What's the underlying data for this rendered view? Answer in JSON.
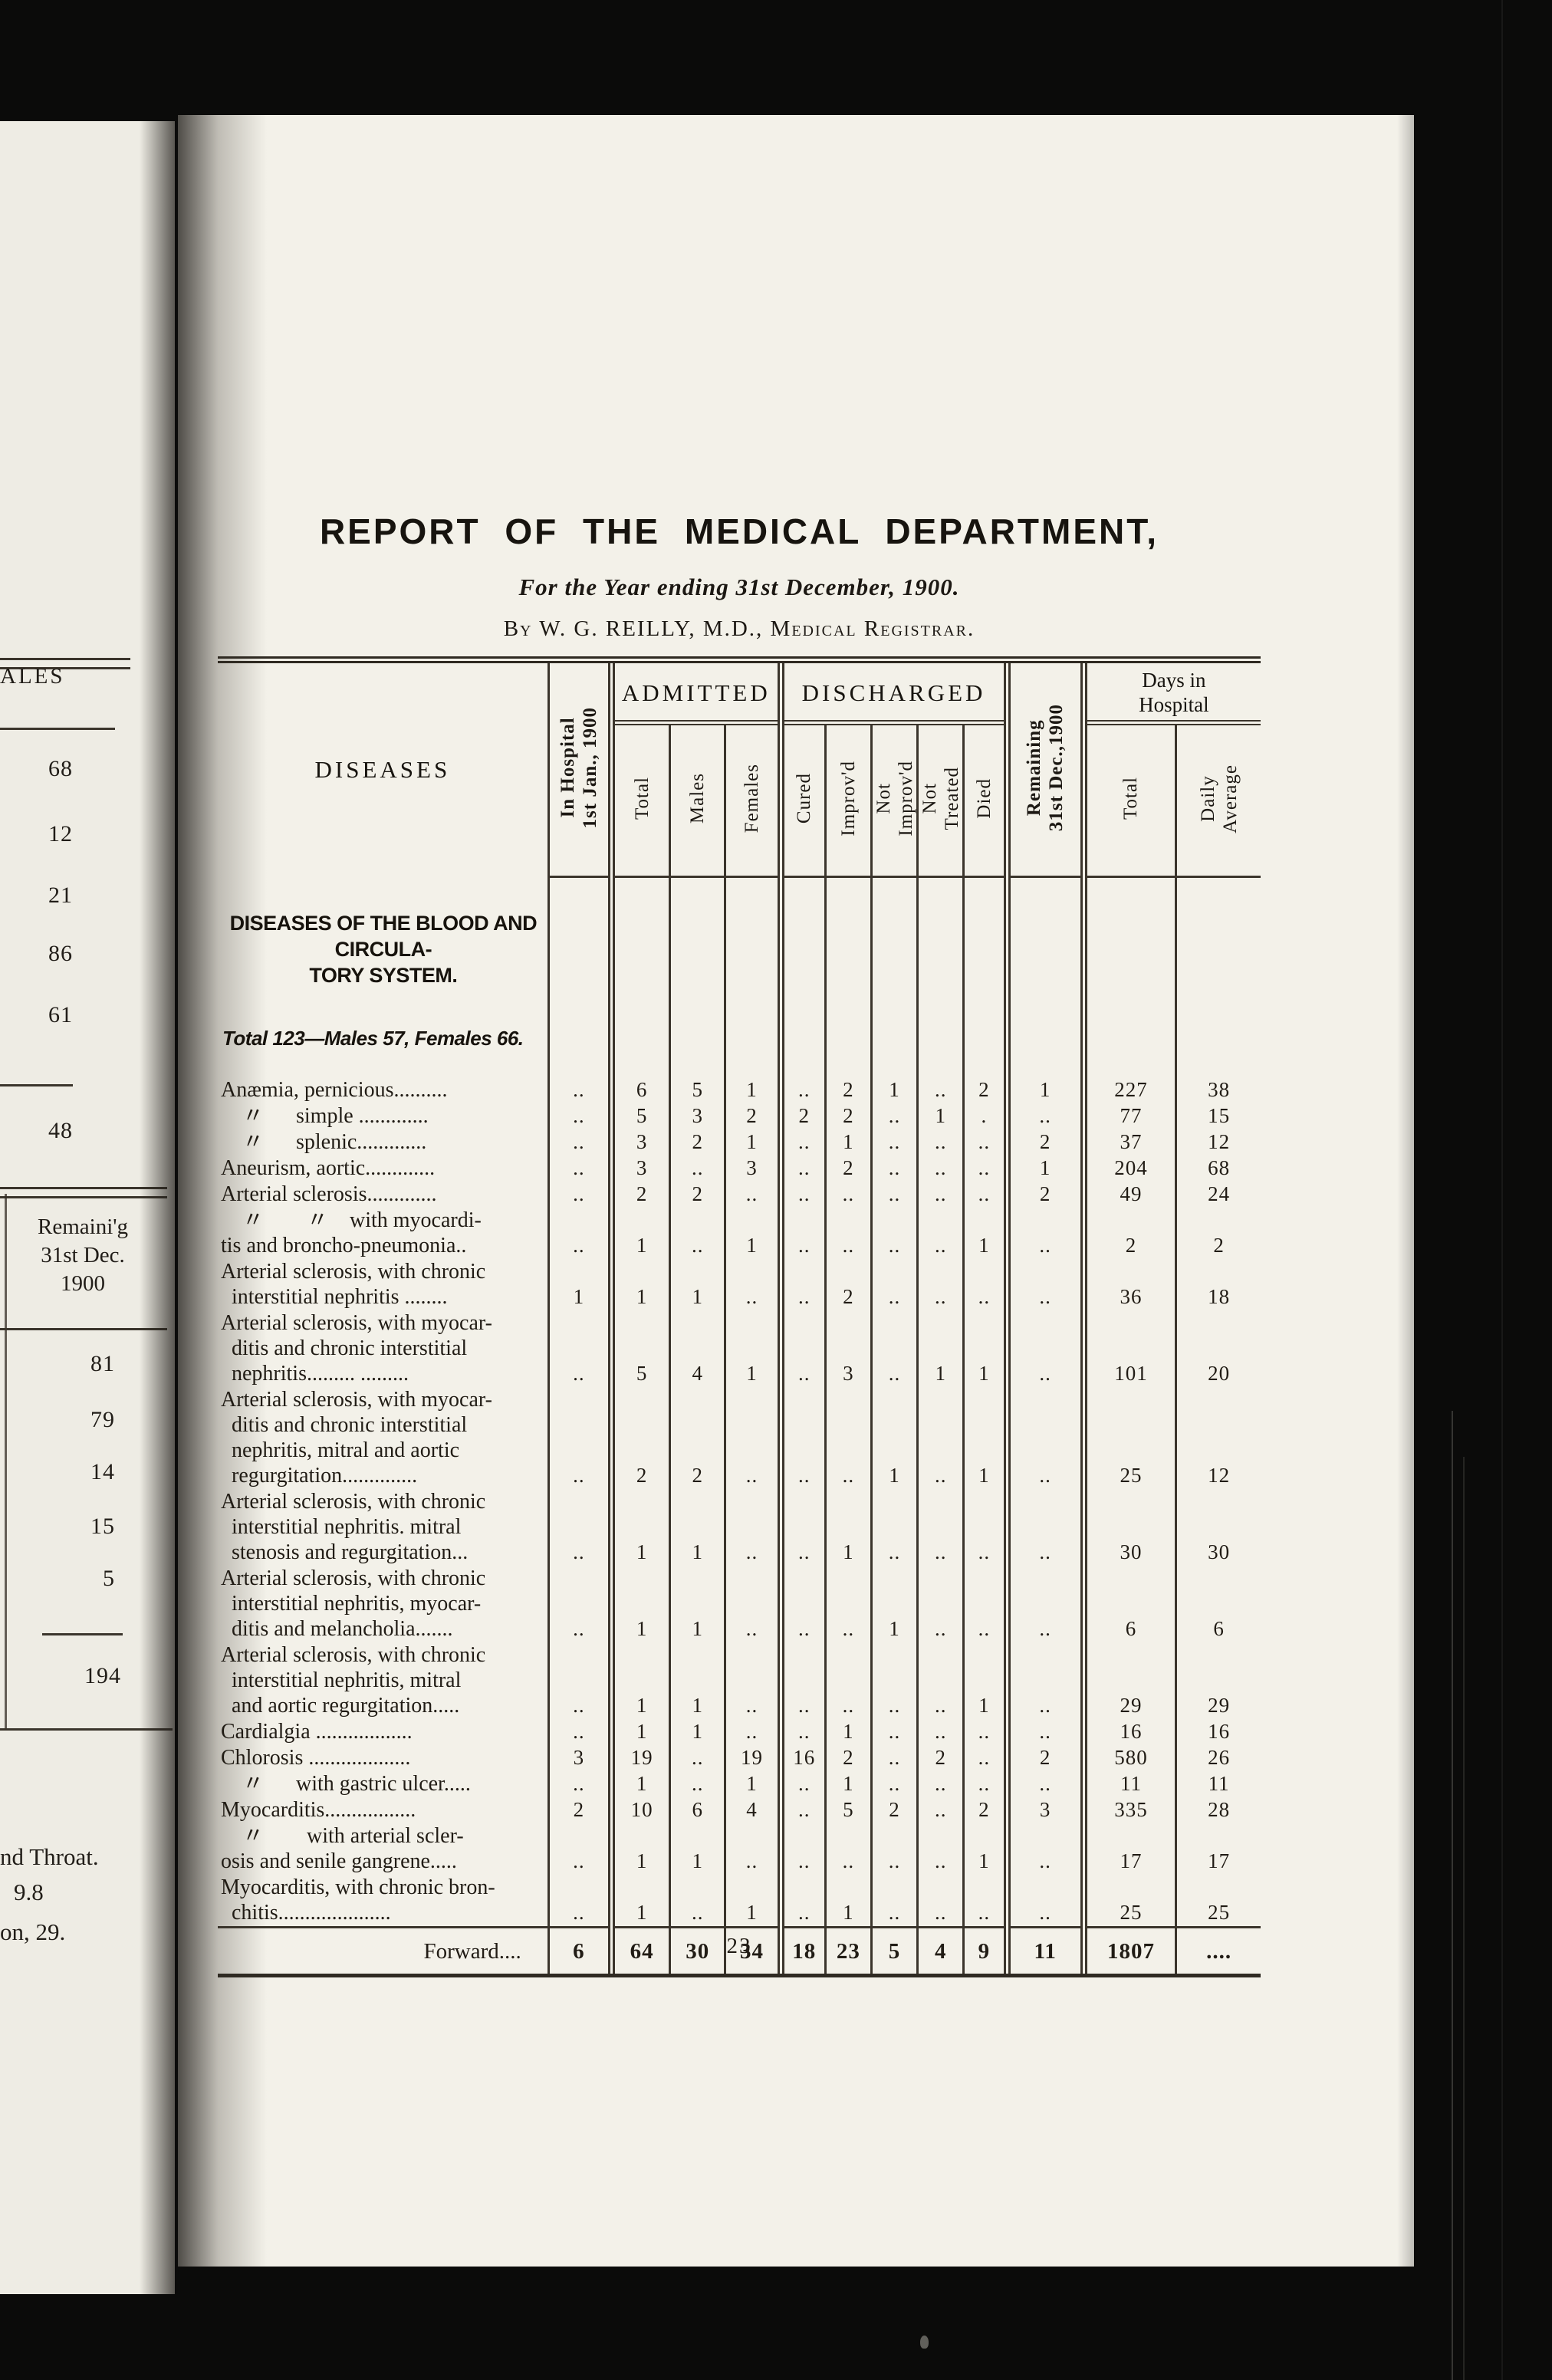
{
  "title": {
    "heading": "REPORT OF THE MEDICAL DEPARTMENT,",
    "subtitle": "For the Year ending 31st December, 1900.",
    "byline": "By W. G. REILLY, M.D., Medical Registrar."
  },
  "page": {
    "number": "23"
  },
  "table": {
    "header": {
      "diseases": "DISEASES",
      "in_hospital": "In Hospital\n1st Jan., 1900",
      "admitted": "ADMITTED",
      "total": "Total",
      "males": "Males",
      "females": "Females",
      "discharged": "DISCHARGED",
      "cured": "Cured",
      "improvd": "Improv'd",
      "not_improvd": "Not\nImprov'd",
      "not_treated": "Not\nTreated",
      "died": "Died",
      "remaining": "Remaining\n31st Dec.,1900",
      "days": "Days in\nHospital",
      "days_total": "Total",
      "daily_average": "Daily\nAverage"
    },
    "section": {
      "heading": "DISEASES OF THE BLOOD AND CIRCULA-\nTORY SYSTEM.",
      "summary": "Total 123—Males 57, Females 66."
    },
    "rows": [
      {
        "name": "Anæmia, pernicious..........",
        "cells": [
          "..",
          "6",
          "5",
          "1",
          "..",
          "2",
          "1",
          "..",
          "2",
          "1",
          "227",
          "38"
        ]
      },
      {
        "name": " 〃  simple .............",
        "cells": [
          "..",
          "5",
          "3",
          "2",
          "2",
          "2",
          "..",
          "1",
          ".",
          "..",
          "77",
          "15"
        ]
      },
      {
        "name": " 〃  splenic.............",
        "cells": [
          "..",
          "3",
          "2",
          "1",
          "..",
          "1",
          "..",
          "..",
          "..",
          "2",
          "37",
          "12"
        ]
      },
      {
        "name": "Aneurism, aortic.............",
        "cells": [
          "..",
          "3",
          "..",
          "3",
          "..",
          "2",
          "..",
          "..",
          "..",
          "1",
          "204",
          "68"
        ]
      },
      {
        "name": "Arterial sclerosis.............",
        "cells": [
          "..",
          "2",
          "2",
          "..",
          "..",
          "..",
          "..",
          "..",
          "..",
          "2",
          "49",
          "24"
        ]
      },
      {
        "name": " 〃  〃 with myocardi-\ntis and broncho-pneumonia..",
        "cells": [
          "..",
          "1",
          "..",
          "1",
          "..",
          "..",
          "..",
          "..",
          "1",
          "..",
          "2",
          "2"
        ]
      },
      {
        "name": "Arterial sclerosis, with chronic\n interstitial nephritis ........",
        "cells": [
          "1",
          "1",
          "1",
          "..",
          "..",
          "2",
          "..",
          "..",
          "..",
          "..",
          "36",
          "18"
        ]
      },
      {
        "name": "Arterial sclerosis, with myocar-\n ditis and chronic interstitial\n nephritis......... .........",
        "cells": [
          "..",
          "5",
          "4",
          "1",
          "..",
          "3",
          "..",
          "1",
          "1",
          "..",
          "101",
          "20"
        ]
      },
      {
        "name": "Arterial sclerosis, with myocar-\n ditis and chronic interstitial\n nephritis, mitral and aortic\n regurgitation..............",
        "cells": [
          "..",
          "2",
          "2",
          "..",
          "..",
          "..",
          "1",
          "..",
          "1",
          "..",
          "25",
          "12"
        ]
      },
      {
        "name": "Arterial sclerosis, with chronic\n interstitial nephritis. mitral\n stenosis and regurgitation...",
        "cells": [
          "..",
          "1",
          "1",
          "..",
          "..",
          "1",
          "..",
          "..",
          "..",
          "..",
          "30",
          "30"
        ]
      },
      {
        "name": "Arterial sclerosis, with chronic\n interstitial nephritis, myocar-\n ditis and melancholia.......",
        "cells": [
          "..",
          "1",
          "1",
          "..",
          "..",
          "..",
          "1",
          "..",
          "..",
          "..",
          "6",
          "6"
        ]
      },
      {
        "name": "Arterial sclerosis, with chronic\n interstitial nephritis, mitral\n and aortic regurgitation.....",
        "cells": [
          "..",
          "1",
          "1",
          "..",
          "..",
          "..",
          "..",
          "..",
          "1",
          "..",
          "29",
          "29"
        ]
      },
      {
        "name": "Cardialgia ..................",
        "cells": [
          "..",
          "1",
          "1",
          "..",
          "..",
          "1",
          "..",
          "..",
          "..",
          "..",
          "16",
          "16"
        ]
      },
      {
        "name": "Chlorosis ...................",
        "cells": [
          "3",
          "19",
          "..",
          "19",
          "16",
          "2",
          "..",
          "2",
          "..",
          "2",
          "580",
          "26"
        ]
      },
      {
        "name": " 〃  with gastric ulcer.....",
        "cells": [
          "..",
          "1",
          "..",
          "1",
          "..",
          "1",
          "..",
          "..",
          "..",
          "..",
          "11",
          "11"
        ]
      },
      {
        "name": "Myocarditis.................",
        "cells": [
          "2",
          "10",
          "6",
          "4",
          "..",
          "5",
          "2",
          "..",
          "2",
          "3",
          "335",
          "28"
        ]
      },
      {
        "name": " 〃  with arterial scler-\nosis and senile gangrene.....",
        "cells": [
          "..",
          "1",
          "1",
          "..",
          "..",
          "..",
          "..",
          "..",
          "1",
          "..",
          "17",
          "17"
        ]
      },
      {
        "name": "Myocarditis, with chronic bron-\n chitis.....................",
        "cells": [
          "..",
          "1",
          "..",
          "1",
          "..",
          "1",
          "..",
          "..",
          "..",
          "..",
          "25",
          "25"
        ]
      }
    ],
    "forward": {
      "label": "Forward....",
      "cells": [
        "6",
        "64",
        "30",
        "34",
        "18",
        "23",
        "5",
        "4",
        "9",
        "11",
        "1807",
        "...."
      ]
    }
  },
  "left_page": {
    "top_label": "ALES",
    "upper_values": [
      "68",
      "12",
      "21",
      "86",
      "61"
    ],
    "upper_total": "48",
    "remaining_header": "Remaini'g\n31st Dec.\n1900",
    "lower_values": [
      "81",
      "79",
      "14",
      "15",
      "5"
    ],
    "lower_total": "194",
    "bottom_lines": [
      "nd Throat.",
      "9.8",
      "on, 29."
    ]
  }
}
